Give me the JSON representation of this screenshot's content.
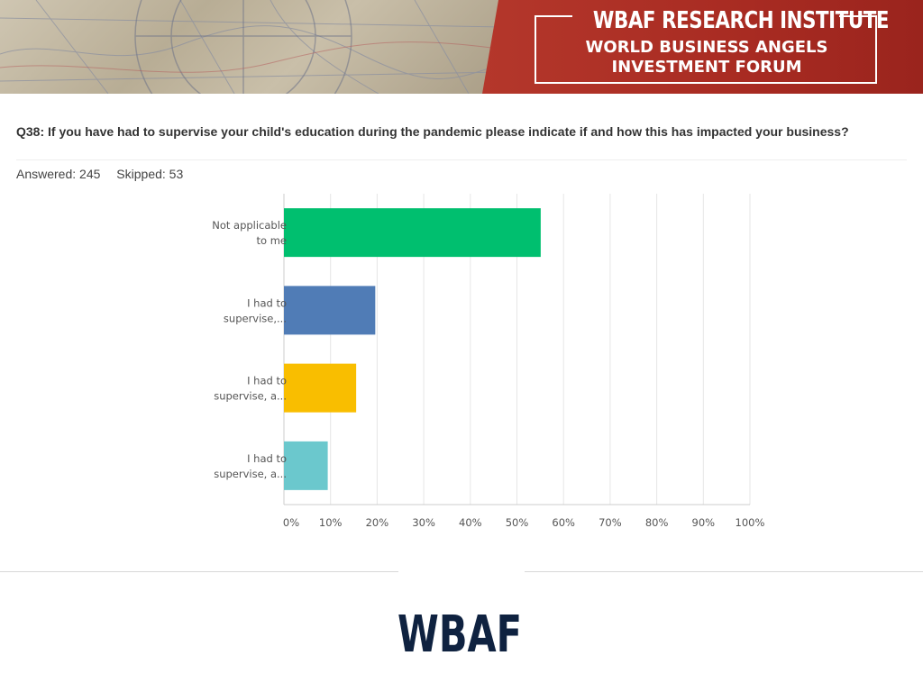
{
  "header": {
    "title": "WBAF RESEARCH INSTITUTE",
    "subtitle_line1": "WORLD BUSINESS ANGELS",
    "subtitle_line2": "INVESTMENT FORUM"
  },
  "question": {
    "text": "Q38: If you have had to supervise your child's education during the pandemic please indicate if and how this has impacted your business?",
    "answered": "Answered: 245",
    "skipped": "Skipped: 53"
  },
  "chart_data": {
    "type": "bar",
    "orientation": "horizontal",
    "categories": [
      [
        "Not applicable",
        "to me"
      ],
      [
        "I had to",
        "supervise,..."
      ],
      [
        "I had to",
        "supervise, a..."
      ],
      [
        "I had to",
        "supervise, a..."
      ]
    ],
    "values": [
      55.1,
      19.6,
      15.5,
      9.4
    ],
    "colors": [
      "#00bf6f",
      "#507cb6",
      "#f9be00",
      "#6bc8cd"
    ],
    "xlim": [
      0,
      100
    ],
    "ticks": [
      "0%",
      "10%",
      "20%",
      "30%",
      "40%",
      "50%",
      "60%",
      "70%",
      "80%",
      "90%",
      "100%"
    ],
    "grid": true
  },
  "footer": {
    "logo_text": "WBAF"
  },
  "colors": {
    "banner_red": "#a82b22",
    "logo_navy": "#0f2240"
  }
}
